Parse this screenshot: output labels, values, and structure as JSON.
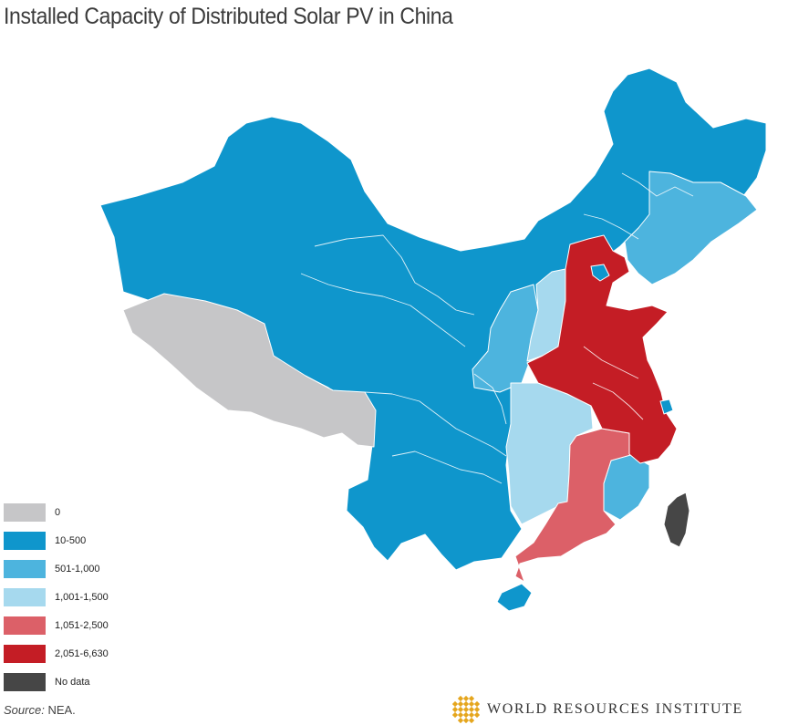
{
  "title": "Installed Capacity of Distributed Solar PV in China",
  "legend": {
    "items": [
      {
        "label": "0",
        "color": "#c6c6c8"
      },
      {
        "label": "10-500",
        "color": "#0f96cc"
      },
      {
        "label": "501-1,000",
        "color": "#4db4de"
      },
      {
        "label": "1,001-1,500",
        "color": "#a6d9ee"
      },
      {
        "label": "1,051-2,500",
        "color": "#dc6068"
      },
      {
        "label": "2,051-6,630",
        "color": "#c41d25"
      },
      {
        "label": "No data",
        "color": "#464646"
      }
    ]
  },
  "source": {
    "label": "Source:",
    "value": "NEA."
  },
  "logo": {
    "name": "World Resources Institute",
    "text": "WORLD RESOURCES INSTITUTE",
    "icon": "wri-lattice-icon",
    "color": "#e5a61e"
  },
  "map_regions": [
    {
      "name": "tibet",
      "category": "0"
    },
    {
      "name": "taiwan",
      "category": "No data"
    },
    {
      "name": "hebei",
      "category": "2,051-6,630"
    },
    {
      "name": "shandong",
      "category": "2,051-6,630"
    },
    {
      "name": "henan",
      "category": "2,051-6,630"
    },
    {
      "name": "anhui",
      "category": "2,051-6,630"
    },
    {
      "name": "jiangsu",
      "category": "2,051-6,630"
    },
    {
      "name": "zhejiang",
      "category": "2,051-6,630"
    },
    {
      "name": "jiangxi",
      "category": "1,051-2,500"
    },
    {
      "name": "guangdong",
      "category": "1,051-2,500"
    },
    {
      "name": "shanxi",
      "category": "1,001-1,500"
    },
    {
      "name": "hubei",
      "category": "1,001-1,500"
    },
    {
      "name": "hunan",
      "category": "1,001-1,500"
    },
    {
      "name": "jilin",
      "category": "501-1,000"
    },
    {
      "name": "liaoning",
      "category": "501-1,000"
    },
    {
      "name": "shaanxi",
      "category": "501-1,000"
    },
    {
      "name": "fujian",
      "category": "501-1,000"
    },
    {
      "name": "ningxia",
      "category": "501-1,000"
    }
  ]
}
